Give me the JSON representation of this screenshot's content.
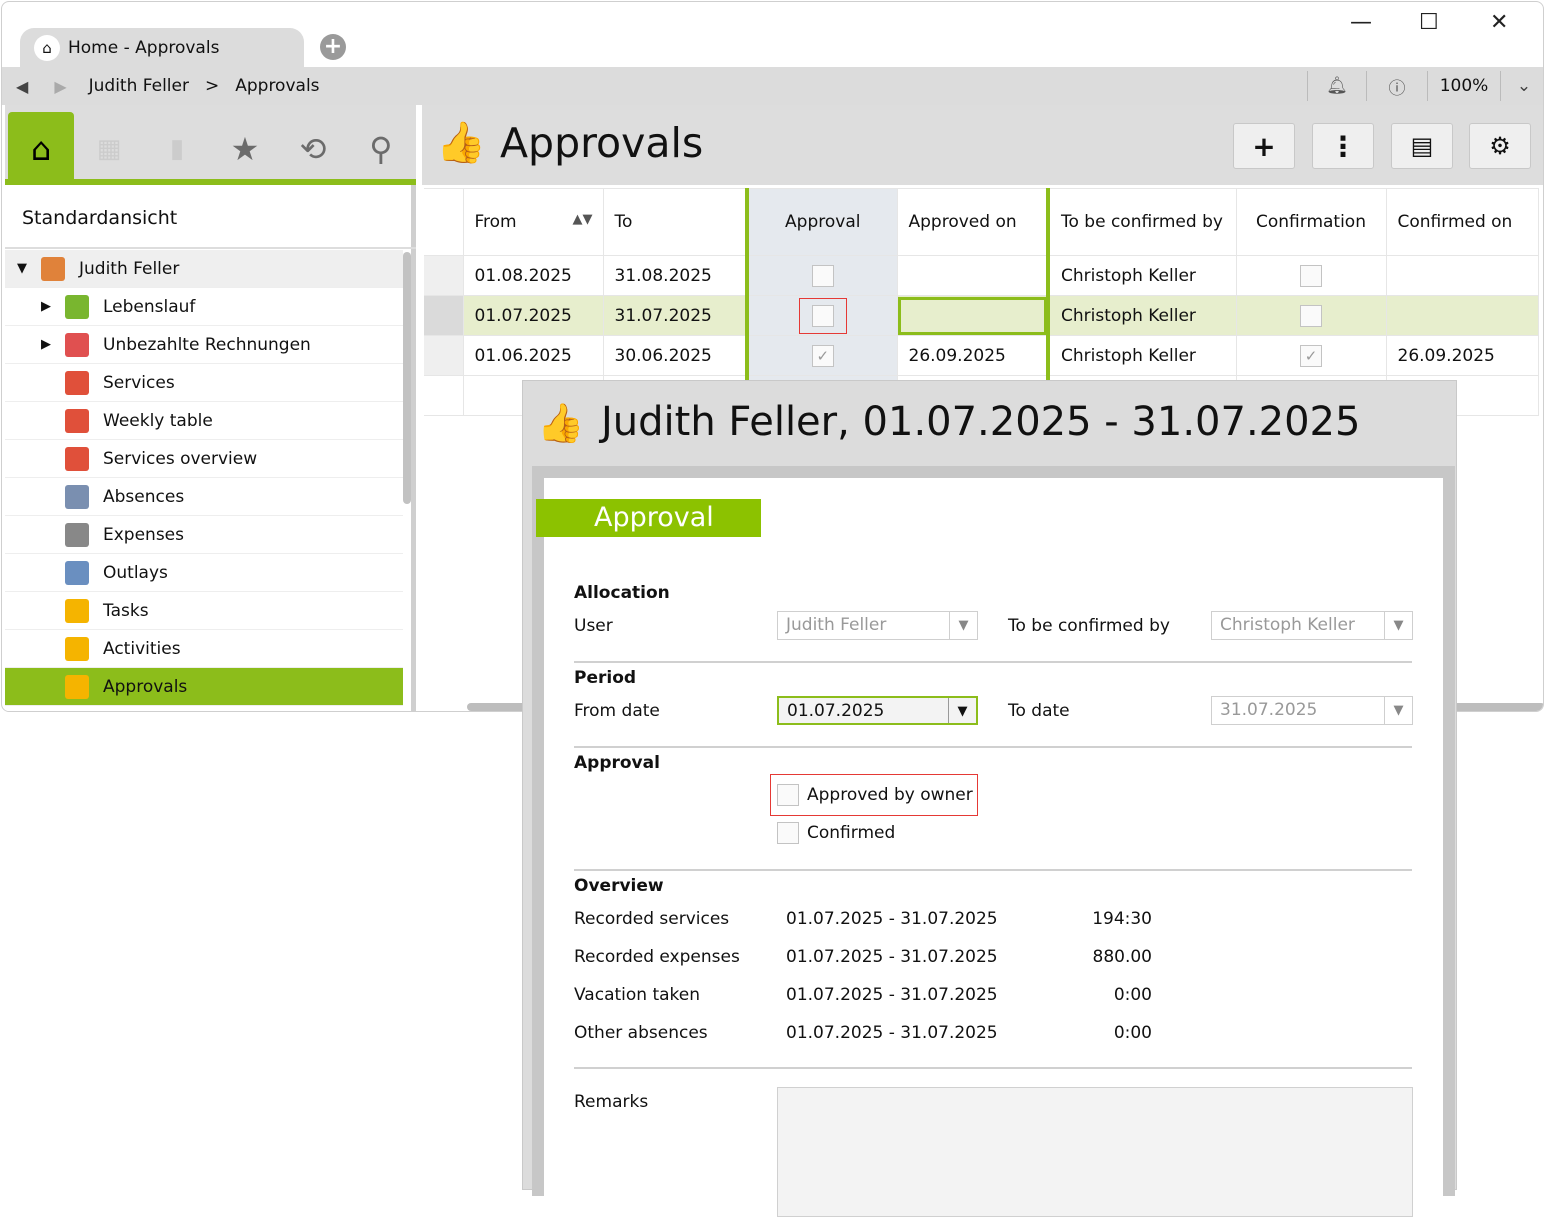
{
  "window": {
    "tab_title": "Home - Approvals",
    "minimize": "—",
    "maximize": "☐",
    "close": "✕"
  },
  "nav": {
    "breadcrumb": [
      "Judith Feller",
      ">",
      "Approvals"
    ],
    "zoom": "100%"
  },
  "sidebar": {
    "view_name": "Standardansicht",
    "items": [
      {
        "label": "Judith Feller",
        "expander": "▼",
        "icon": "user-icon",
        "color": "#e0823a"
      },
      {
        "label": "Lebenslauf",
        "expander": "▶",
        "icon": "document-icon",
        "color": "#79b62f"
      },
      {
        "label": "Unbezahlte Rechnungen",
        "expander": "▶",
        "icon": "invoice-icon",
        "color": "#e05050"
      },
      {
        "label": "Services",
        "icon": "services-icon",
        "color": "#e0503a"
      },
      {
        "label": "Weekly table",
        "icon": "weekly-table-icon",
        "color": "#e0503a"
      },
      {
        "label": "Services overview",
        "icon": "services-overview-icon",
        "color": "#e0503a"
      },
      {
        "label": "Absences",
        "icon": "absences-icon",
        "color": "#7a8fb0"
      },
      {
        "label": "Expenses",
        "icon": "expenses-icon",
        "color": "#888888"
      },
      {
        "label": "Outlays",
        "icon": "outlays-icon",
        "color": "#6a8fc0"
      },
      {
        "label": "Tasks",
        "icon": "tasks-icon",
        "color": "#f5b400"
      },
      {
        "label": "Activities",
        "icon": "activities-icon",
        "color": "#f5b400"
      },
      {
        "label": "Approvals",
        "icon": "thumbs-up-icon",
        "color": "#f5b400",
        "selected": true
      }
    ]
  },
  "main": {
    "title": "Approvals",
    "columns": [
      "From",
      "To",
      "Approval",
      "Approved on",
      "To be confirmed by",
      "Confirmation",
      "Confirmed on"
    ],
    "rows": [
      {
        "from": "01.08.2025",
        "to": "31.08.2025",
        "approval": false,
        "approved_on": "",
        "confirm_by": "Christoph Keller",
        "confirmation": false,
        "confirmed_on": ""
      },
      {
        "from": "01.07.2025",
        "to": "31.07.2025",
        "approval": false,
        "approved_on": "",
        "confirm_by": "Christoph Keller",
        "confirmation": false,
        "confirmed_on": "",
        "selected": true
      },
      {
        "from": "01.06.2025",
        "to": "30.06.2025",
        "approval": true,
        "approved_on": "26.09.2025",
        "confirm_by": "Christoph Keller",
        "confirmation": true,
        "confirmed_on": "26.09.2025"
      }
    ]
  },
  "dialog": {
    "title": "Judith Feller, 01.07.2025 - 31.07.2025",
    "tab": "Approval",
    "allocation": {
      "heading": "Allocation",
      "user_label": "User",
      "user_value": "Judith Feller",
      "confirm_label": "To be confirmed by",
      "confirm_value": "Christoph Keller"
    },
    "period": {
      "heading": "Period",
      "from_label": "From date",
      "from_value": "01.07.2025",
      "to_label": "To date",
      "to_value": "31.07.2025"
    },
    "approval": {
      "heading": "Approval",
      "approved_by_owner": "Approved by owner",
      "confirmed": "Confirmed"
    },
    "overview": {
      "heading": "Overview",
      "rows": [
        {
          "label": "Recorded services",
          "period": "01.07.2025 - 31.07.2025",
          "value": "194:30"
        },
        {
          "label": "Recorded expenses",
          "period": "01.07.2025 - 31.07.2025",
          "value": "880.00"
        },
        {
          "label": "Vacation taken",
          "period": "01.07.2025 - 31.07.2025",
          "value": "0:00"
        },
        {
          "label": "Other absences",
          "period": "01.07.2025 - 31.07.2025",
          "value": "0:00"
        }
      ]
    },
    "remarks_label": "Remarks"
  },
  "colors": {
    "accent": "#8cbd1b",
    "selected_row": "#e7eecd",
    "highlight": "#e53935"
  }
}
